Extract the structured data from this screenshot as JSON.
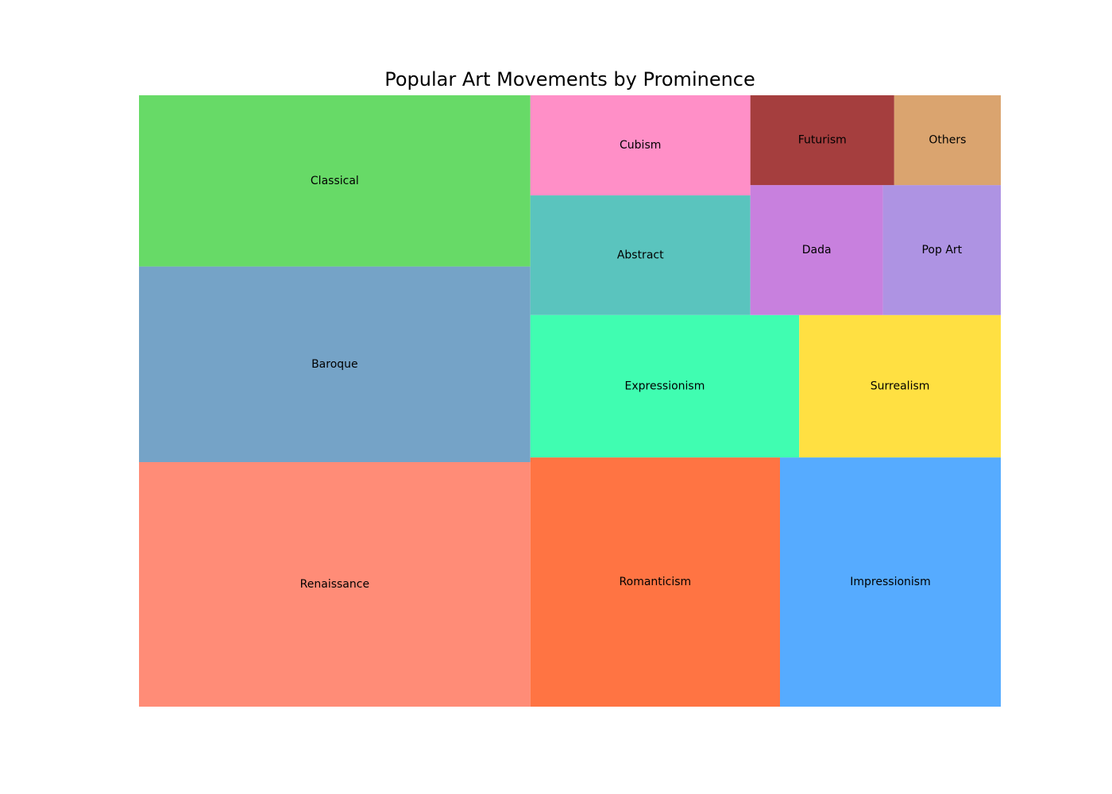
{
  "chart_data": {
    "type": "treemap",
    "title": "Popular Art Movements by Prominence",
    "items": [
      {
        "label": "Renaissance",
        "value": 20,
        "color": "#ff8c77"
      },
      {
        "label": "Baroque",
        "value": 16,
        "color": "#75a3c7"
      },
      {
        "label": "Classical",
        "value": 14,
        "color": "#67da67"
      },
      {
        "label": "Romanticism",
        "value": 13,
        "color": "#ff7443"
      },
      {
        "label": "Impressionism",
        "value": 11.5,
        "color": "#56abff"
      },
      {
        "label": "Expressionism",
        "value": 8,
        "color": "#40fdb1"
      },
      {
        "label": "Surrealism",
        "value": 6,
        "color": "#ffe042"
      },
      {
        "label": "Abstract",
        "value": 5.5,
        "color": "#5ac4be"
      },
      {
        "label": "Cubism",
        "value": 4.6,
        "color": "#ff8fc7"
      },
      {
        "label": "Dada",
        "value": 3.6,
        "color": "#c880de"
      },
      {
        "label": "Pop Art",
        "value": 3.2,
        "color": "#ae93e3"
      },
      {
        "label": "Futurism",
        "value": 2.7,
        "color": "#a53e3e"
      },
      {
        "label": "Others",
        "value": 2.0,
        "color": "#daa46f"
      }
    ]
  }
}
